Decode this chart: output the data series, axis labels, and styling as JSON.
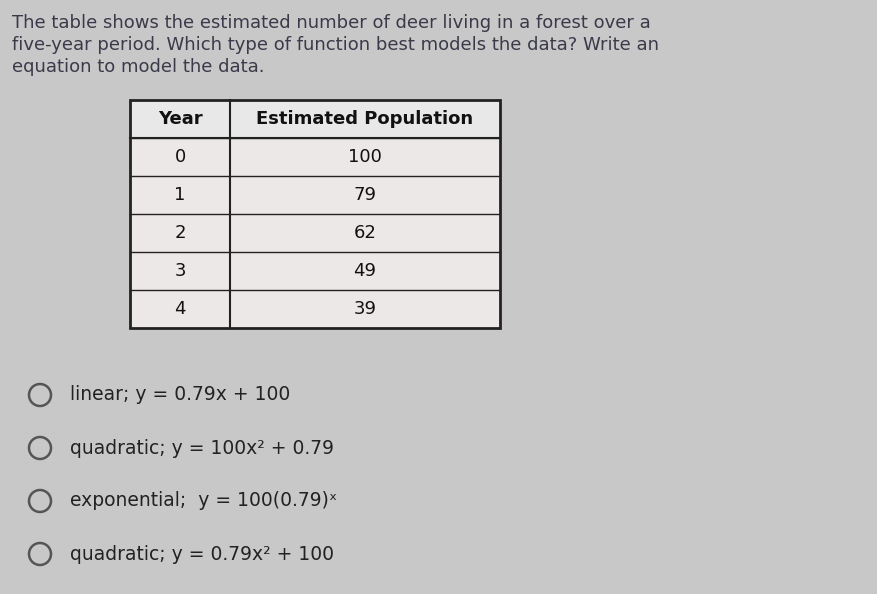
{
  "background_color": "#c8c8c8",
  "title_text_lines": [
    "The table shows the estimated number of deer living in a forest over a",
    "five-year period. Which type of function best models the data? Write an",
    "equation to model the data."
  ],
  "title_fontsize": 13.0,
  "title_color": "#3a3a4a",
  "table_headers": [
    "Year",
    "Estimated Population"
  ],
  "table_data": [
    [
      "0",
      "100"
    ],
    [
      "1",
      "79"
    ],
    [
      "2",
      "62"
    ],
    [
      "3",
      "49"
    ],
    [
      "4",
      "39"
    ]
  ],
  "header_bg": "#e8e8e8",
  "row_bg": "#ede8e8",
  "table_border_color": "#222222",
  "table_text_color": "#111111",
  "options": [
    "linear; y = 0.79x + 100",
    "quadratic; y = 100x² + 0.79",
    "exponential;  y = 100(0.79)ˣ",
    "quadratic; y = 0.79x² + 100"
  ],
  "option_fontsize": 13.5,
  "option_color": "#222222",
  "circle_color": "#555555",
  "fig_width": 8.77,
  "fig_height": 5.94,
  "dpi": 100
}
